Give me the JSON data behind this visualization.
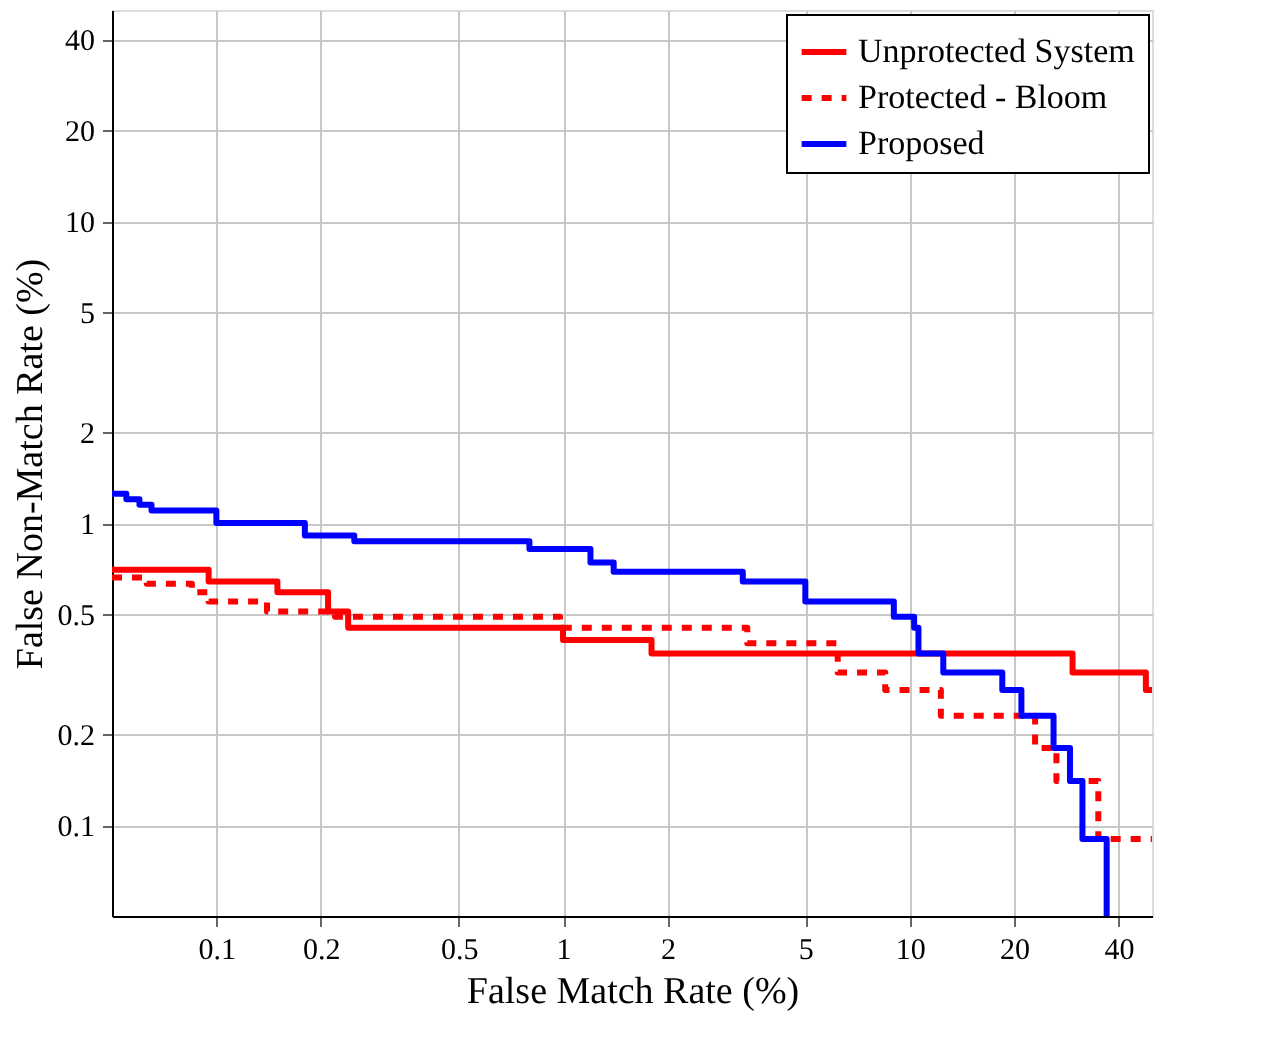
{
  "chart_data": {
    "type": "step",
    "xlabel": "False Match Rate (%)",
    "ylabel": "False Non-Match Rate (%)",
    "xlim": [
      0.05,
      50
    ],
    "ylim": [
      0.05,
      50
    ],
    "xticks": [
      0.1,
      0.2,
      0.5,
      1,
      2,
      5,
      10,
      20,
      40
    ],
    "yticks": [
      0.1,
      0.2,
      0.5,
      1,
      2,
      5,
      10,
      20,
      40
    ],
    "grid": true,
    "legend": "top right",
    "marker": "none",
    "log": "xy",
    "series": [
      {
        "name": "Unprotected System",
        "color": "#ff0000",
        "line_style": "solid",
        "x": [
          0.05,
          0.095,
          0.15,
          0.21,
          0.24,
          1.0,
          1.8,
          29.5,
          48,
          50
        ],
        "values": [
          0.7,
          0.64,
          0.59,
          0.51,
          0.45,
          0.41,
          0.37,
          0.32,
          0.28,
          0.28
        ]
      },
      {
        "name": "Protected - Bloom",
        "color": "#ff0000",
        "line_style": "dashed",
        "x": [
          0.05,
          0.063,
          0.085,
          0.095,
          0.14,
          0.22,
          0.98,
          3.4,
          6.2,
          8.5,
          12.3,
          23,
          26.5,
          35,
          50
        ],
        "values": [
          0.66,
          0.63,
          0.59,
          0.55,
          0.51,
          0.49,
          0.45,
          0.4,
          0.32,
          0.28,
          0.23,
          0.18,
          0.14,
          0.09,
          0.09
        ]
      },
      {
        "name": "Proposed",
        "color": "#0000ff",
        "line_style": "solid",
        "x": [
          0.05,
          0.055,
          0.06,
          0.065,
          0.1,
          0.18,
          0.25,
          0.8,
          1.2,
          1.4,
          3.3,
          5,
          9,
          10.3,
          10.6,
          12.5,
          18.5,
          21,
          26,
          29,
          31.5,
          37
        ],
        "values": [
          1.25,
          1.2,
          1.15,
          1.1,
          1.0,
          0.91,
          0.87,
          0.82,
          0.74,
          0.69,
          0.64,
          0.55,
          0.49,
          0.45,
          0.37,
          0.32,
          0.28,
          0.23,
          0.18,
          0.14,
          0.09,
          0.05
        ]
      }
    ]
  }
}
